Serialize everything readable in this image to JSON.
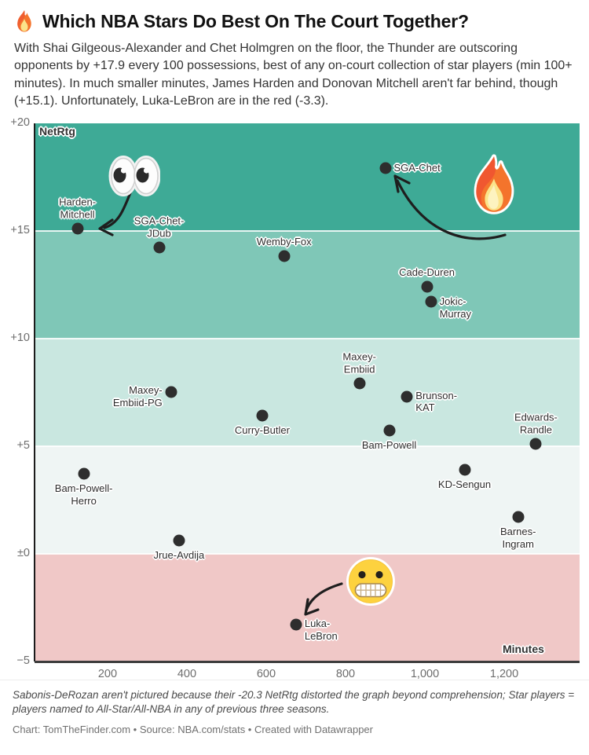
{
  "header": {
    "title": "Which NBA Stars Do Best On The Court Together?",
    "title_emoji": "fire-emoji",
    "description": "With Shai Gilgeous-Alexander and Chet Holmgren on the floor, the Thunder are outscoring opponents by +17.9 every 100 possessions, best of any on-court collection of star players (min 100+ minutes). In much smaller minutes, James Harden and Donovan Mitchell aren't far behind, though (+15.1). Unfortunately, Luka-LeBron are in the red (-3.3)."
  },
  "chart_data": {
    "type": "scatter",
    "xlabel": "Minutes",
    "ylabel": "NetRtg",
    "xlim": [
      16,
      1390
    ],
    "ylim": [
      -5,
      20
    ],
    "x_ticks": [
      200,
      400,
      600,
      800,
      1000,
      1200
    ],
    "x_tick_labels": [
      "200",
      "400",
      "600",
      "800",
      "1,000",
      "1,200"
    ],
    "y_ticks": [
      20,
      15,
      10,
      5,
      0,
      -5
    ],
    "y_tick_labels": [
      "+20",
      "+15",
      "+10",
      "+5",
      "±0",
      "−5"
    ],
    "grid": "white band separators",
    "point_color": "#2e2e2e",
    "bands": [
      {
        "from": 15,
        "to": 20,
        "color": "#3eaa96"
      },
      {
        "from": 10,
        "to": 15,
        "color": "#7fc7b7"
      },
      {
        "from": 5,
        "to": 10,
        "color": "#c9e7e0"
      },
      {
        "from": 0,
        "to": 5,
        "color": "#eff5f4"
      },
      {
        "from": -5,
        "to": 0,
        "color": "#f0c8c7"
      }
    ],
    "points": [
      {
        "name": "SGA-Chet",
        "lines": [
          "SGA-Chet"
        ],
        "minutes": 900,
        "netrtg": 17.9,
        "side": "right",
        "dy": 0
      },
      {
        "name": "Harden-Mitchell",
        "lines": [
          "Harden-",
          "Mitchell"
        ],
        "minutes": 124,
        "netrtg": 15.1,
        "side": "above",
        "dy": 0
      },
      {
        "name": "SGA-Chet-JDub",
        "lines": [
          "SGA-Chet-",
          "JDub"
        ],
        "minutes": 330,
        "netrtg": 14.2,
        "side": "above",
        "dy": 0
      },
      {
        "name": "Wemby-Fox",
        "lines": [
          "Wemby-Fox"
        ],
        "minutes": 645,
        "netrtg": 13.8,
        "side": "above",
        "dy": 0
      },
      {
        "name": "Cade-Duren",
        "lines": [
          "Cade-Duren"
        ],
        "minutes": 1005,
        "netrtg": 12.4,
        "side": "above",
        "dy": 0
      },
      {
        "name": "Jokic-Murray",
        "lines": [
          "Jokic-",
          "Murray"
        ],
        "minutes": 1015,
        "netrtg": 11.7,
        "side": "right",
        "dy": 8
      },
      {
        "name": "Maxey-Embiid",
        "lines": [
          "Maxey-",
          "Embiid"
        ],
        "minutes": 835,
        "netrtg": 7.9,
        "side": "above",
        "dy": 0
      },
      {
        "name": "Maxey-Embiid-PG",
        "lines": [
          "Maxey-",
          "Embiid-PG"
        ],
        "minutes": 360,
        "netrtg": 7.5,
        "side": "left",
        "dy": 6
      },
      {
        "name": "Brunson-KAT",
        "lines": [
          "Brunson-",
          "KAT"
        ],
        "minutes": 955,
        "netrtg": 7.3,
        "side": "right",
        "dy": 7
      },
      {
        "name": "Curry-Butler",
        "lines": [
          "Curry-Butler"
        ],
        "minutes": 590,
        "netrtg": 6.4,
        "side": "below",
        "dy": 0
      },
      {
        "name": "Bam-Powell",
        "lines": [
          "Bam-Powell"
        ],
        "minutes": 910,
        "netrtg": 5.7,
        "side": "below",
        "dy": 0
      },
      {
        "name": "Edwards-Randle",
        "lines": [
          "Edwards-",
          "Randle"
        ],
        "minutes": 1280,
        "netrtg": 5.1,
        "side": "above",
        "dy": 0
      },
      {
        "name": "KD-Sengun",
        "lines": [
          "KD-Sengun"
        ],
        "minutes": 1100,
        "netrtg": 3.9,
        "side": "below",
        "dy": 0
      },
      {
        "name": "Bam-Powell-Herro",
        "lines": [
          "Bam-Powell-",
          "Herro"
        ],
        "minutes": 140,
        "netrtg": 3.7,
        "side": "below",
        "dy": 0
      },
      {
        "name": "Barnes-Ingram",
        "lines": [
          "Barnes-",
          "Ingram"
        ],
        "minutes": 1235,
        "netrtg": 1.7,
        "side": "below",
        "dy": 0
      },
      {
        "name": "Jrue-Avdija",
        "lines": [
          "Jrue-Avdija"
        ],
        "minutes": 380,
        "netrtg": 0.6,
        "side": "below",
        "dy": 0
      },
      {
        "name": "Luka-LeBron",
        "lines": [
          "Luka-",
          "LeBron"
        ],
        "minutes": 675,
        "netrtg": -3.3,
        "side": "right",
        "dy": 7
      }
    ],
    "annotations": [
      {
        "emoji": "eyes-emoji",
        "points_to": "Harden-Mitchell"
      },
      {
        "emoji": "fire-emoji",
        "points_to": "SGA-Chet"
      },
      {
        "emoji": "grimace-emoji",
        "points_to": "Luka-LeBron"
      }
    ]
  },
  "footer": {
    "note": "Sabonis-DeRozan aren't pictured because their -20.3 NetRtg distorted the graph beyond comprehension; Star players = players named to All-Star/All-NBA in any of previous three seasons.",
    "credit": "Chart: TomTheFinder.com • Source: NBA.com/stats • Created with Datawrapper"
  }
}
